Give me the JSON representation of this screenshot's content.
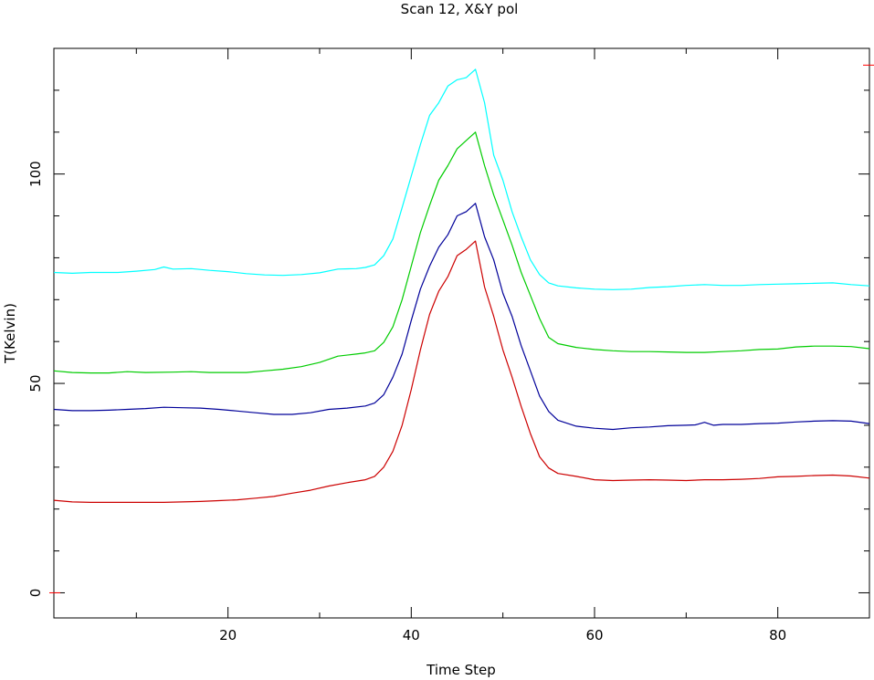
{
  "chart_data": {
    "type": "line",
    "title": "Scan 12, X&Y pol",
    "xlabel": "Time Step",
    "ylabel": "T(Kelvin)",
    "xlim": [
      1,
      90
    ],
    "ylim": [
      -6,
      130
    ],
    "x_ticks": [
      20,
      40,
      60,
      80
    ],
    "y_ticks": [
      0,
      50,
      100
    ],
    "x_minor_step": 10,
    "y_minor_step": 10,
    "grid": false,
    "right_markers": [
      {
        "y": 126,
        "color": "#ff0000"
      }
    ],
    "left_markers": [
      {
        "y": 0,
        "color": "#ff0000"
      }
    ],
    "series": [
      {
        "color": "#00ffff",
        "x": [
          1,
          3,
          5,
          8,
          10,
          12,
          13,
          14,
          16,
          18,
          20,
          22,
          24,
          26,
          28,
          30,
          32,
          34,
          35,
          36,
          37,
          38,
          39,
          40,
          41,
          42,
          43,
          44,
          45,
          46,
          47,
          48,
          49,
          50,
          51,
          52,
          53,
          54,
          55,
          56,
          58,
          60,
          62,
          64,
          66,
          68,
          70,
          72,
          74,
          76,
          78,
          80,
          82,
          84,
          86,
          88,
          90
        ],
        "y": [
          76.5,
          76.3,
          76.5,
          76.5,
          76.8,
          77.2,
          77.8,
          77.3,
          77.4,
          77,
          76.7,
          76.2,
          75.9,
          75.8,
          76,
          76.4,
          77.3,
          77.4,
          77.7,
          78.3,
          80.5,
          84.5,
          92,
          99.5,
          107,
          114,
          117,
          121,
          122.5,
          123,
          125,
          117,
          104.5,
          98.5,
          91,
          85,
          79.5,
          76,
          74,
          73.3,
          72.8,
          72.5,
          72.4,
          72.5,
          72.9,
          73.1,
          73.4,
          73.6,
          73.4,
          73.4,
          73.6,
          73.7,
          73.8,
          73.9,
          74,
          73.6,
          73.3
        ]
      },
      {
        "color": "#00cc00",
        "x": [
          1,
          3,
          5,
          7,
          9,
          11,
          14,
          16,
          18,
          20,
          22,
          24,
          26,
          28,
          30,
          32,
          34,
          35,
          36,
          37,
          38,
          39,
          40,
          41,
          42,
          43,
          44,
          45,
          46,
          47,
          48,
          49,
          50,
          51,
          52,
          53,
          54,
          55,
          56,
          58,
          60,
          62,
          64,
          66,
          68,
          70,
          72,
          74,
          76,
          78,
          80,
          82,
          84,
          86,
          88,
          90
        ],
        "y": [
          53,
          52.6,
          52.5,
          52.5,
          52.8,
          52.6,
          52.7,
          52.8,
          52.6,
          52.6,
          52.6,
          53,
          53.4,
          54,
          55,
          56.5,
          57,
          57.3,
          57.8,
          59.8,
          63.5,
          70,
          78,
          86,
          92.5,
          98.5,
          102,
          106,
          108,
          110,
          102,
          95,
          89,
          83,
          76.5,
          71,
          65.5,
          61,
          59.5,
          58.6,
          58.1,
          57.8,
          57.6,
          57.6,
          57.5,
          57.4,
          57.4,
          57.6,
          57.8,
          58.1,
          58.2,
          58.7,
          58.9,
          58.9,
          58.8,
          58.3
        ]
      },
      {
        "color": "#000099",
        "x": [
          1,
          3,
          5,
          7,
          9,
          11,
          13,
          15,
          17,
          19,
          21,
          23,
          25,
          27,
          29,
          31,
          33,
          35,
          36,
          37,
          38,
          39,
          40,
          41,
          42,
          43,
          44,
          45,
          46,
          47,
          48,
          49,
          50,
          51,
          52,
          53,
          54,
          55,
          56,
          58,
          60,
          62,
          64,
          66,
          68,
          70,
          71,
          72,
          73,
          74,
          76,
          78,
          80,
          82,
          84,
          86,
          88,
          90
        ],
        "y": [
          43.8,
          43.5,
          43.5,
          43.6,
          43.8,
          44,
          44.3,
          44.2,
          44.1,
          43.8,
          43.4,
          43,
          42.6,
          42.6,
          43,
          43.8,
          44.1,
          44.6,
          45.3,
          47.3,
          51.5,
          57,
          65,
          72.5,
          78,
          82.5,
          85.5,
          90,
          91,
          93,
          85,
          79.5,
          71.5,
          66,
          59,
          53,
          47,
          43.3,
          41.2,
          39.8,
          39.3,
          39,
          39.4,
          39.6,
          39.9,
          40,
          40.1,
          40.7,
          40,
          40.2,
          40.2,
          40.4,
          40.5,
          40.8,
          41,
          41.1,
          41,
          40.4
        ]
      },
      {
        "color": "#cc0000",
        "x": [
          1,
          3,
          5,
          7,
          9,
          11,
          13,
          15,
          17,
          19,
          21,
          23,
          25,
          27,
          29,
          31,
          33,
          35,
          36,
          37,
          38,
          39,
          40,
          41,
          42,
          43,
          44,
          45,
          46,
          47,
          48,
          49,
          50,
          51,
          52,
          53,
          54,
          55,
          56,
          58,
          60,
          62,
          64,
          66,
          68,
          70,
          72,
          74,
          76,
          78,
          80,
          82,
          84,
          86,
          88,
          90
        ],
        "y": [
          22.1,
          21.7,
          21.6,
          21.6,
          21.6,
          21.6,
          21.6,
          21.7,
          21.8,
          22,
          22.2,
          22.6,
          23,
          23.8,
          24.5,
          25.5,
          26.3,
          27,
          27.8,
          30,
          33.8,
          40,
          48.5,
          58,
          66.5,
          72,
          75.5,
          80.5,
          82,
          84,
          73,
          66,
          58,
          51.5,
          44.5,
          38,
          32.5,
          29.8,
          28.5,
          27.8,
          27,
          26.8,
          26.9,
          27,
          26.9,
          26.8,
          27,
          27,
          27.1,
          27.3,
          27.7,
          27.8,
          28,
          28.1,
          27.9,
          27.4
        ]
      }
    ]
  }
}
